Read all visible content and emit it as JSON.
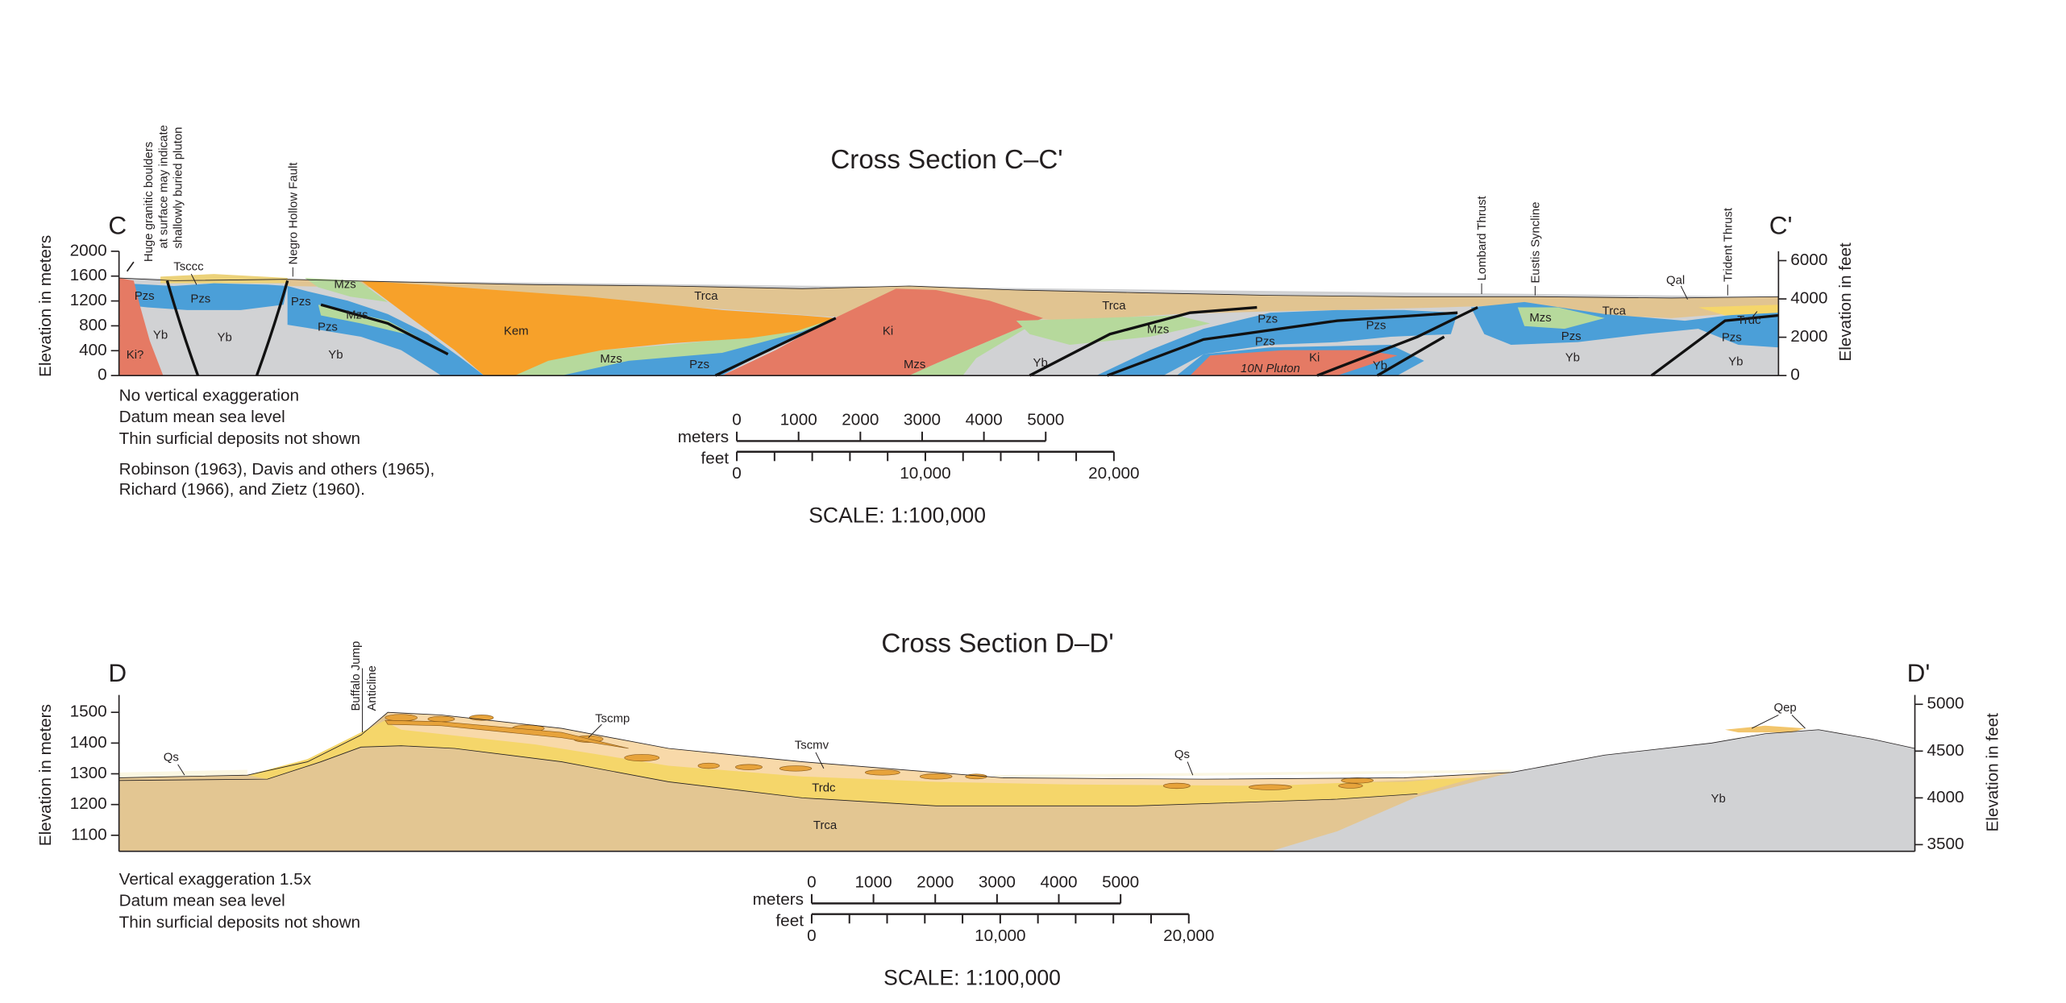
{
  "sections": [
    {
      "title": "Cross Section C–C'",
      "start": "C",
      "end": "C'",
      "left_axis": {
        "label": "Elevation in meters",
        "ticks": [
          "0",
          "400",
          "800",
          "1200",
          "1600",
          "2000"
        ]
      },
      "right_axis": {
        "label": "Elevation in feet",
        "ticks": [
          "0",
          "2000",
          "4000",
          "6000"
        ]
      },
      "annotations": [
        {
          "lines": [
            "Huge granitic boulders",
            "at surface may indicate",
            "shallowly buried pluton"
          ]
        },
        {
          "lines": [
            "Negro Hollow Fault"
          ]
        },
        {
          "lines": [
            "Lombard Thrust"
          ]
        },
        {
          "lines": [
            "Eustis Syncline"
          ]
        },
        {
          "lines": [
            "Trident Thrust"
          ]
        }
      ],
      "units": [
        "Pzs",
        "Tsccc",
        "Pzs",
        "Yb",
        "Yb",
        "Ki?",
        "Mzs",
        "Pzs",
        "Mzs",
        "Pzs",
        "Yb",
        "Kem",
        "Mzs",
        "Pzs",
        "Trca",
        "Ki",
        "Mzs",
        "Trca",
        "Mzs",
        "Yb",
        "Pzs",
        "Pzs",
        "Ki",
        "10N Pluton",
        "Yb",
        "Pzs",
        "Mzs",
        "Trca",
        "Pzs",
        "Yb",
        "Qal",
        "Trdc",
        "Pzs",
        "Yb"
      ],
      "notes": [
        "No vertical exaggeration",
        "Datum mean sea level",
        "Thin surficial deposits not shown",
        "Robinson (1963), Davis and others (1965),",
        "Richard (1966), and Zietz (1960)."
      ],
      "scale": {
        "meters_label": "meters",
        "feet_label": "feet",
        "meters_ticks": [
          "0",
          "1000",
          "2000",
          "3000",
          "4000",
          "5000"
        ],
        "feet_ticks": [
          "0",
          "10,000",
          "20,000"
        ],
        "ratio": "SCALE: 1:100,000"
      }
    },
    {
      "title": "Cross Section D–D'",
      "start": "D",
      "end": "D'",
      "left_axis": {
        "label": "Elevation in meters",
        "ticks": [
          "1100",
          "1200",
          "1300",
          "1400",
          "1500"
        ]
      },
      "right_axis": {
        "label": "Elevation in feet",
        "ticks": [
          "3500",
          "4000",
          "4500",
          "5000"
        ]
      },
      "annotations": [
        {
          "lines": [
            "Buffalo Jump",
            "Anticline"
          ]
        }
      ],
      "units": [
        "Qs",
        "Tscmp",
        "Tscmv",
        "Trdc",
        "Trca",
        "Qs",
        "Yb",
        "Qep"
      ],
      "notes": [
        "Vertical exaggeration 1.5x",
        "Datum mean sea level",
        "Thin surficial deposits not shown"
      ],
      "scale": {
        "meters_label": "meters",
        "feet_label": "feet",
        "meters_ticks": [
          "0",
          "1000",
          "2000",
          "3000",
          "4000",
          "5000"
        ],
        "feet_ticks": [
          "0",
          "10,000",
          "20,000"
        ],
        "ratio": "SCALE: 1:100,000"
      }
    }
  ]
}
